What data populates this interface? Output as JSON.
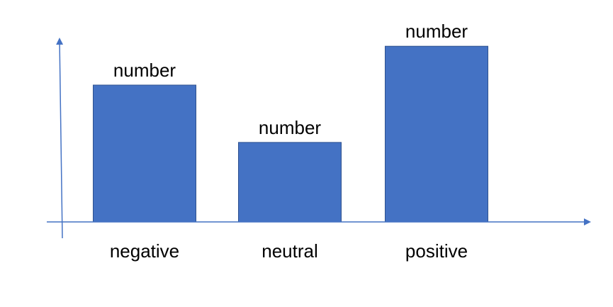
{
  "chart_data": {
    "type": "bar",
    "categories": [
      "negative",
      "neutral",
      "positive"
    ],
    "values": [
      0.74,
      0.43,
      0.95
    ],
    "value_labels": [
      "number",
      "number",
      "number"
    ],
    "title": "",
    "xlabel": "",
    "ylabel": "",
    "ylim": [
      0,
      1.2
    ],
    "grid": false,
    "legend": "none",
    "colors": {
      "bar_fill": "#4472C4",
      "bar_stroke": "#2F528F",
      "axis": "#4472C4"
    }
  }
}
